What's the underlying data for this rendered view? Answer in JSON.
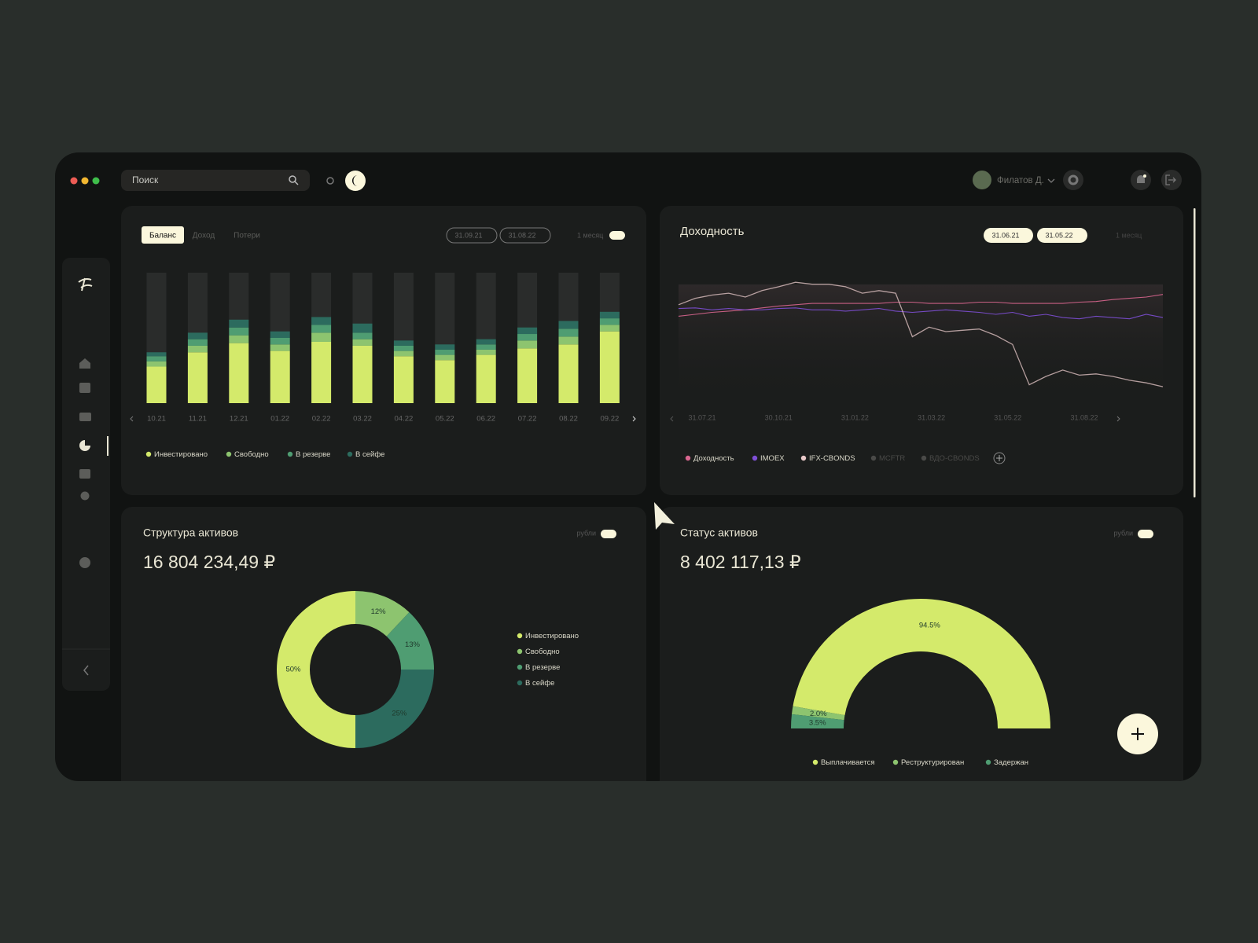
{
  "window": {
    "search_placeholder": "Поиск",
    "user_name": "Филатов Д."
  },
  "balance_panel": {
    "tabs": [
      "Баланс",
      "Доход",
      "Потери"
    ],
    "date_from": "31.09.21",
    "date_to": "31.08.22",
    "period": "1 месяц",
    "chart_data": {
      "type": "bar",
      "stacked": true,
      "categories": [
        "10.21",
        "11.21",
        "12.21",
        "01.22",
        "02.22",
        "03.22",
        "04.22",
        "05.22",
        "06.22",
        "07.22",
        "08.22",
        "09.22"
      ],
      "ylim": [
        0,
        100
      ],
      "series": [
        {
          "name": "Инвестировано",
          "color": "#d4ea6b",
          "values": [
            28,
            39,
            46,
            40,
            47,
            44,
            36,
            33,
            37,
            42,
            45,
            55
          ]
        },
        {
          "name": "Свободно",
          "color": "#8dc46f",
          "values": [
            4,
            5,
            6,
            5,
            7,
            5,
            4,
            4,
            4,
            6,
            6,
            5
          ]
        },
        {
          "name": "В резерве",
          "color": "#4f9d72",
          "values": [
            4,
            5,
            6,
            5,
            6,
            5,
            4,
            4,
            4,
            5,
            6,
            5
          ]
        },
        {
          "name": "В сейфе",
          "color": "#2c6b5e",
          "values": [
            3,
            5,
            6,
            5,
            6,
            7,
            4,
            4,
            4,
            5,
            6,
            5
          ]
        }
      ]
    }
  },
  "yield_panel": {
    "title": "Доходность",
    "date_from": "31.06.21",
    "date_to": "31.05.22",
    "period": "1 месяц",
    "chart_data": {
      "type": "line",
      "x_labels": [
        "31.07.21",
        "30.10.21",
        "31.01.22",
        "31.03.22",
        "31.05.22",
        "31.08.22"
      ],
      "ylim": [
        0,
        100
      ],
      "series": [
        {
          "name": "Доходность",
          "color": "#d9668f",
          "values": [
            66,
            67.5,
            69,
            70,
            71,
            72.5,
            74,
            75,
            76,
            76,
            76,
            76,
            76,
            77,
            77,
            76,
            76,
            76,
            77,
            77,
            76,
            76,
            76,
            76,
            77,
            77.5,
            79,
            80,
            81,
            83
          ]
        },
        {
          "name": "IMOEX",
          "color": "#7e4fd6",
          "values": [
            72,
            72.5,
            71,
            72,
            71,
            71,
            72,
            72.5,
            71,
            71,
            70,
            71,
            72,
            70,
            69,
            70,
            71,
            70,
            69,
            67.5,
            69,
            66,
            67.5,
            65,
            64,
            66,
            65,
            64,
            67.5,
            65
          ]
        },
        {
          "name": "IFX-CBONDS",
          "color": "#e8c9c9",
          "values": [
            75,
            80,
            82.5,
            84,
            81,
            86,
            89,
            92.5,
            91,
            91,
            89,
            84,
            86,
            84,
            50,
            57.5,
            54,
            55,
            56,
            51,
            44,
            12.5,
            19,
            24,
            20,
            21,
            19,
            16,
            14,
            11
          ]
        }
      ]
    },
    "inactive_legend": [
      "MCFTR",
      "ВДО-CBONDS"
    ]
  },
  "structure_panel": {
    "title": "Структура активов",
    "unit": "рубли",
    "total": "16 804 234,49 ₽",
    "chart_data": {
      "type": "donut",
      "categories": [
        "Инвестировано",
        "Свободно",
        "В резерве",
        "В сейфе"
      ],
      "values": [
        50,
        12,
        13,
        25
      ],
      "value_labels": [
        "50%",
        "12%",
        "13%",
        "25%"
      ],
      "colors": [
        "#d4ea6b",
        "#8dc46f",
        "#4f9d72",
        "#2c6b5e"
      ]
    }
  },
  "status_panel": {
    "title": "Статус активов",
    "unit": "рубли",
    "total": "8 402 117,13 ₽",
    "chart_data": {
      "type": "half-donut",
      "categories": [
        "Выплачивается",
        "Реструктурирован",
        "Задержан"
      ],
      "values": [
        94.5,
        2.0,
        3.5
      ],
      "value_labels": [
        "94.5%",
        "2.0%",
        "3.5%"
      ],
      "colors": [
        "#d4ea6b",
        "#8dc46f",
        "#4f9d72"
      ]
    }
  }
}
